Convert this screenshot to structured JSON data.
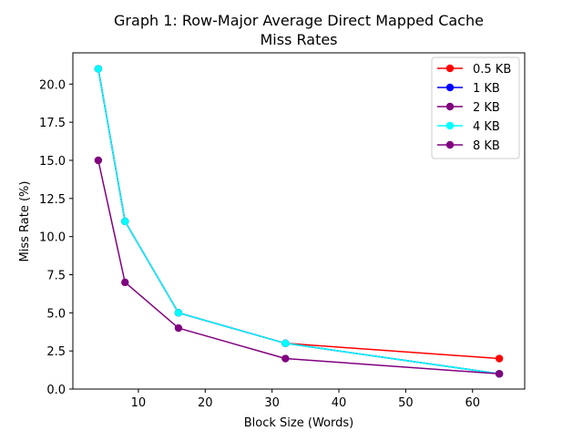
{
  "chart_data": {
    "type": "line",
    "title": "Graph 1: Row-Major Average Direct Mapped Cache",
    "subtitle": "Miss Rates",
    "xlabel": "Block Size (Words)",
    "ylabel": "Miss Rate (%)",
    "x": [
      4,
      8,
      16,
      32,
      64
    ],
    "xlim": [
      0.2,
      67.8
    ],
    "ylim": [
      0,
      22.05
    ],
    "xticks": [
      10,
      20,
      30,
      40,
      50,
      60
    ],
    "yticks": [
      0.0,
      2.5,
      5.0,
      7.5,
      10.0,
      12.5,
      15.0,
      17.5,
      20.0
    ],
    "xtick_labels": [
      "10",
      "20",
      "30",
      "40",
      "50",
      "60"
    ],
    "ytick_labels": [
      "0.0",
      "2.5",
      "5.0",
      "7.5",
      "10.0",
      "12.5",
      "15.0",
      "17.5",
      "20.0"
    ],
    "grid": false,
    "legend_position": "top-right",
    "series": [
      {
        "name": "0.5 KB",
        "color": "#ff0000",
        "values": [
          21,
          11,
          5,
          3,
          2
        ]
      },
      {
        "name": "1 KB",
        "color": "#0000ff",
        "values": [
          21,
          11,
          5,
          3,
          1
        ]
      },
      {
        "name": "2 KB",
        "color": "#800080",
        "values": [
          21,
          11,
          5,
          3,
          1
        ]
      },
      {
        "name": "4 KB",
        "color": "#00ffff",
        "values": [
          21,
          11,
          5,
          3,
          1
        ]
      },
      {
        "name": "8 KB",
        "color": "#800080",
        "values": [
          15,
          7,
          4,
          2,
          1
        ]
      }
    ]
  }
}
